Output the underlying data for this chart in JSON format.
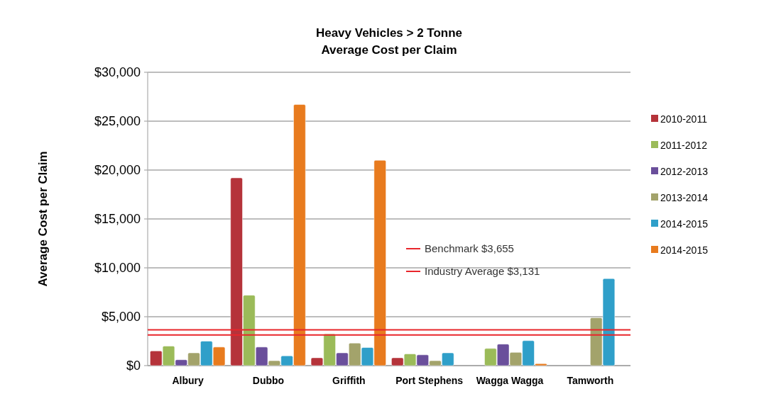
{
  "chart_data": {
    "type": "bar",
    "title": "Heavy Vehicles > 2 Tonne\nAverage Cost per Claim",
    "ylabel": "Average Cost per Claim",
    "categories": [
      "Albury",
      "Dubbo",
      "Griffith",
      "Port Stephens",
      "Wagga Wagga",
      "Tamworth"
    ],
    "series": [
      {
        "name": "2010-2011",
        "color": "#b5333a",
        "values": [
          1500,
          19200,
          800,
          800,
          null,
          null
        ]
      },
      {
        "name": "2011-2012",
        "color": "#9bbb59",
        "values": [
          2000,
          7200,
          3250,
          1200,
          1750,
          null
        ]
      },
      {
        "name": "2012-2013",
        "color": "#6a4f9b",
        "values": [
          600,
          1900,
          1300,
          1100,
          2200,
          null
        ]
      },
      {
        "name": "2013-2014",
        "color": "#a3a36b",
        "values": [
          1300,
          500,
          2300,
          500,
          1350,
          4900
        ]
      },
      {
        "name": "2014-2015",
        "color": "#2f9fc9",
        "values": [
          2500,
          1000,
          1850,
          1300,
          2550,
          8900
        ]
      },
      {
        "name": "2014-2015",
        "color": "#e87b1e",
        "values": [
          1900,
          26700,
          21000,
          null,
          200,
          null
        ]
      }
    ],
    "ylim": [
      0,
      30000
    ],
    "yticks": [
      {
        "value": 0,
        "label": "$0"
      },
      {
        "value": 5000,
        "label": "$5,000"
      },
      {
        "value": 10000,
        "label": "$10,000"
      },
      {
        "value": 15000,
        "label": "$15,000"
      },
      {
        "value": 20000,
        "label": "$20,000"
      },
      {
        "value": 25000,
        "label": "$25,000"
      },
      {
        "value": 30000,
        "label": "$30,000"
      }
    ],
    "grid": "y",
    "legend": "right",
    "ref_lines": [
      {
        "axis": "y",
        "value": 3655,
        "label": "Benchmark $3,655",
        "color": "#e8262b"
      },
      {
        "axis": "y",
        "value": 3131,
        "label": "Industry Average $3,131",
        "color": "#e8262b"
      }
    ]
  }
}
